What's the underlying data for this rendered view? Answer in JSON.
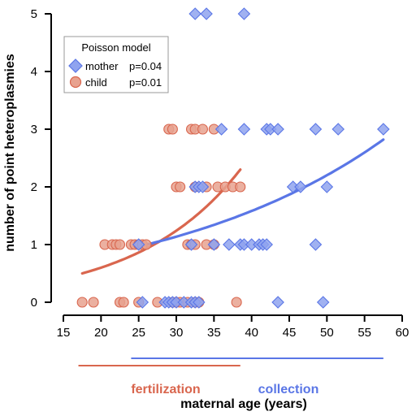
{
  "chart_data": {
    "type": "scatter",
    "xlabel": "maternal age (years)",
    "ylabel": "number of point heteroplasmies",
    "xlim": [
      15,
      60
    ],
    "ylim": [
      0,
      5
    ],
    "xticks": [
      "15",
      "20",
      "25",
      "30",
      "35",
      "40",
      "45",
      "50",
      "55",
      "60"
    ],
    "yticks": [
      "0",
      "1",
      "2",
      "3",
      "4",
      "5"
    ],
    "legend": {
      "title": "Poisson model",
      "placement": "top-left",
      "entries": [
        {
          "label": "mother",
          "pvalue": "p=0.04",
          "marker": "diamond"
        },
        {
          "label": "child",
          "pvalue": "p=0.01",
          "marker": "circle"
        }
      ]
    },
    "series": [
      {
        "name": "child",
        "marker": "circle",
        "color": "#e8a28f",
        "stroke": "#d9664e",
        "points": [
          [
            17.5,
            0
          ],
          [
            19,
            0
          ],
          [
            22.5,
            0
          ],
          [
            23,
            0
          ],
          [
            25,
            0
          ],
          [
            27.5,
            0
          ],
          [
            29.5,
            0
          ],
          [
            30,
            0
          ],
          [
            30.5,
            0
          ],
          [
            31.5,
            0
          ],
          [
            32.5,
            0
          ],
          [
            33,
            0
          ],
          [
            38,
            0
          ],
          [
            20.5,
            1
          ],
          [
            21.5,
            1
          ],
          [
            22,
            1
          ],
          [
            22.5,
            1
          ],
          [
            24,
            1
          ],
          [
            24.5,
            1
          ],
          [
            25,
            1
          ],
          [
            25.5,
            1
          ],
          [
            26,
            1
          ],
          [
            31.5,
            1
          ],
          [
            32,
            1
          ],
          [
            32.5,
            1
          ],
          [
            34,
            1
          ],
          [
            35,
            1
          ],
          [
            30,
            2
          ],
          [
            30.5,
            2
          ],
          [
            32.5,
            2
          ],
          [
            34,
            2
          ],
          [
            35.5,
            2
          ],
          [
            36.5,
            2
          ],
          [
            37.5,
            2
          ],
          [
            38.5,
            2
          ],
          [
            29,
            3
          ],
          [
            29.5,
            3
          ],
          [
            32,
            3
          ],
          [
            32.5,
            3
          ],
          [
            33.5,
            3
          ],
          [
            35,
            3
          ]
        ]
      },
      {
        "name": "mother",
        "marker": "diamond",
        "color": "#8fa3ef",
        "stroke": "#5a76e6",
        "points": [
          [
            25.5,
            0
          ],
          [
            28.5,
            0
          ],
          [
            29,
            0
          ],
          [
            29.5,
            0
          ],
          [
            30,
            0
          ],
          [
            31,
            0
          ],
          [
            32,
            0
          ],
          [
            32.5,
            0
          ],
          [
            33,
            0
          ],
          [
            43.5,
            0
          ],
          [
            49.5,
            0
          ],
          [
            25,
            1
          ],
          [
            32,
            1
          ],
          [
            35,
            1
          ],
          [
            37,
            1
          ],
          [
            38.5,
            1
          ],
          [
            39,
            1
          ],
          [
            40,
            1
          ],
          [
            41,
            1
          ],
          [
            41.5,
            1
          ],
          [
            42,
            1
          ],
          [
            48.5,
            1
          ],
          [
            32.5,
            2
          ],
          [
            33,
            2
          ],
          [
            33.5,
            2
          ],
          [
            45.5,
            2
          ],
          [
            46.5,
            2
          ],
          [
            50,
            2
          ],
          [
            36,
            3
          ],
          [
            39,
            3
          ],
          [
            42,
            3
          ],
          [
            42.5,
            3
          ],
          [
            43.5,
            3
          ],
          [
            48.5,
            3
          ],
          [
            51.5,
            3
          ],
          [
            57.5,
            3
          ],
          [
            32.5,
            5
          ],
          [
            34,
            5
          ],
          [
            39,
            5
          ]
        ]
      }
    ],
    "fits": [
      {
        "series": "child",
        "color": "#d9664e",
        "x_range": [
          17.5,
          38.5
        ],
        "y_start": 0.5,
        "y_end": 2.3
      },
      {
        "series": "mother",
        "color": "#5a76e6",
        "x_range": [
          25.5,
          57.5
        ],
        "y_start": 0.98,
        "y_end": 2.82
      }
    ],
    "annotations": [
      {
        "text": "fertilization",
        "color": "#d9664e",
        "x_range": [
          17,
          38.5
        ]
      },
      {
        "text": "collection",
        "color": "#5a76e6",
        "x_range": [
          24,
          57.5
        ]
      }
    ]
  }
}
